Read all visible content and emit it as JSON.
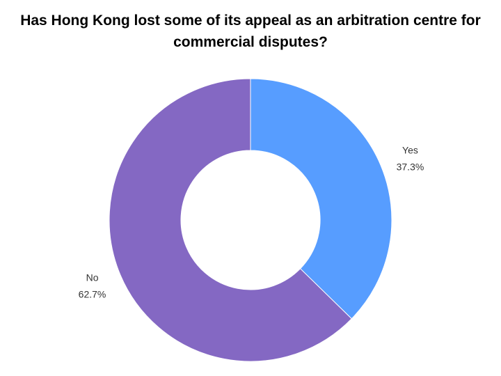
{
  "chart_data": {
    "type": "pie",
    "style": "donut",
    "title": "Has Hong Kong lost some of its appeal as an arbitration centre for commercial disputes?",
    "categories": [
      "Yes",
      "No"
    ],
    "values": [
      37.3,
      62.7
    ],
    "value_labels": [
      "37.3%",
      "62.7%"
    ],
    "colors": [
      "#579dff",
      "#8468c3"
    ],
    "start_angle": "top, clockwise",
    "legend": "none",
    "labels_position": "outside"
  }
}
